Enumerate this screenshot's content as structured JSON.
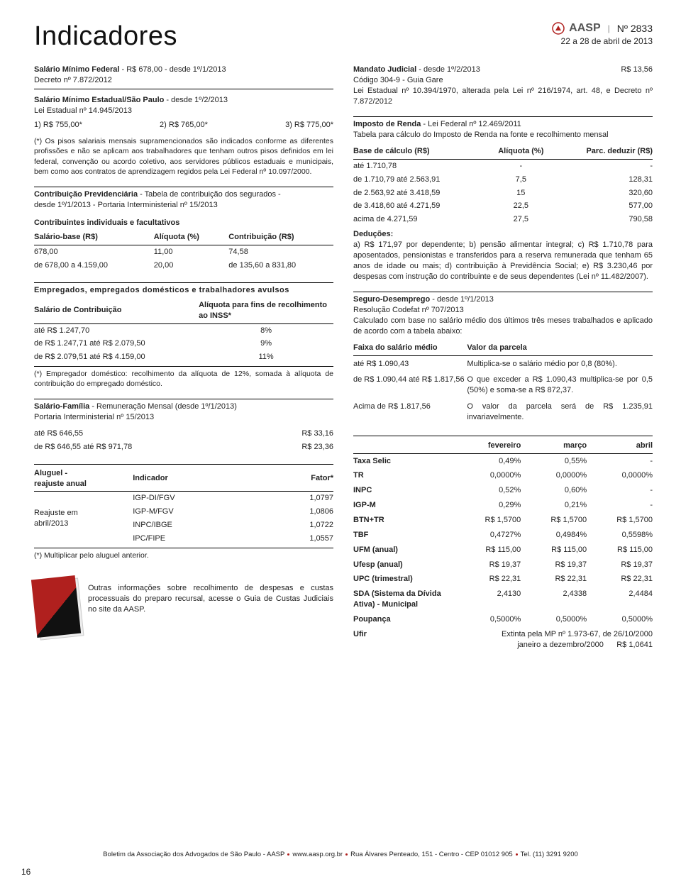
{
  "brand": {
    "name": "AASP",
    "issue": "Nº 2833",
    "dateRange": "22 a 28 de abril de 2013"
  },
  "title": "Indicadores",
  "pageNumber": "16",
  "left": {
    "salMinFed": {
      "label": "Salário Mínimo Federal",
      "value": " - R$ 678,00 - desde 1º/1/2013",
      "decree": "Decreto nº 7.872/2012"
    },
    "salMinEst": {
      "label": "Salário Mínimo Estadual/São Paulo",
      "value": " - desde 1º/2/2013",
      "law": "Lei Estadual nº 14.945/2013",
      "p1": "1) R$ 755,00*",
      "p2": "2) R$ 765,00*",
      "p3": "3) R$ 775,00*",
      "note": "(*) Os pisos salariais mensais supramencionados são indicados conforme as diferentes profissões e não se aplicam aos trabalhadores que tenham outros pisos definidos em lei federal, convenção ou acordo coletivo, aos servidores públicos estaduais e municipais, bem como aos contratos de aprendizagem regidos pela Lei Federal nº 10.097/2000."
    },
    "contribPrev": {
      "label": "Contribuição Previdenciária",
      "value": " - Tabela de contribuição dos segurados -",
      "sub": "desde 1º/1/2013 - Portaria Interministerial nº 15/2013"
    },
    "contribInd": {
      "title": "Contribuintes individuais e facultativos",
      "h1": "Salário-base (R$)",
      "h2": "Alíquota (%)",
      "h3": "Contribuição (R$)",
      "r1c1": "678,00",
      "r1c2": "11,00",
      "r1c3": "74,58",
      "r2c1": "de 678,00 a 4.159,00",
      "r2c2": "20,00",
      "r2c3": "de 135,60 a 831,80"
    },
    "empregados": {
      "title": "Empregados, empregados domésticos e trabalhadores avulsos",
      "h1": "Salário de Contribuição",
      "h2": "Alíquota para fins de recolhimento ao INSS*",
      "r1c1": "até R$ 1.247,70",
      "r1c2": "8%",
      "r2c1": "de R$ 1.247,71 até R$ 2.079,50",
      "r2c2": "9%",
      "r3c1": "de R$ 2.079,51 até R$ 4.159,00",
      "r3c2": "11%",
      "note": "(*) Empregador doméstico: recolhimento da alíquota de 12%, somada à alíquota de contribuição do empregado doméstico."
    },
    "salFamilia": {
      "label": "Salário-Família",
      "value": " - Remuneração Mensal (desde 1º/1/2013)",
      "sub": "Portaria Interministerial nº 15/2013",
      "r1c1": "até R$ 646,55",
      "r1c2": "R$ 33,16",
      "r2c1": "de R$ 646,55 até R$ 971,78",
      "r2c2": "R$ 23,36"
    },
    "aluguel": {
      "titleA": "Aluguel -",
      "titleB": "reajuste anual",
      "h2": "Indicador",
      "h3": "Fator*",
      "rowLabelA": "Reajuste em",
      "rowLabelB": "abril/2013",
      "r1c1": "IGP-DI/FGV",
      "r1c2": "1,0797",
      "r2c1": "IGP-M/FGV",
      "r2c2": "1,0806",
      "r3c1": "INPC/IBGE",
      "r3c2": "1,0722",
      "r4c1": "IPC/FIPE",
      "r4c2": "1,0557",
      "note": "(*) Multiplicar pelo aluguel anterior."
    },
    "outras": "Outras informações sobre recolhimento de despesas e custas processuais do preparo recursal, acesse o Guia de Custas Judiciais no site da AASP."
  },
  "right": {
    "mandato": {
      "label": "Mandato Judicial",
      "value": " - desde 1º/2/2013",
      "amount": "R$ 13,56",
      "l2": "Código 304-9 - Guia Gare",
      "l3": "Lei Estadual nº 10.394/1970, alterada pela Lei nº 216/1974, art. 48, e Decreto nº 7.872/2012"
    },
    "ir": {
      "label": "Imposto de Renda",
      "value": " - Lei Federal nº 12.469/2011",
      "sub": "Tabela para cálculo do Imposto de Renda na fonte e recolhimento mensal",
      "h1": "Base de cálculo (R$)",
      "h2": "Alíquota (%)",
      "h3": "Parc. deduzir (R$)",
      "r1c1": "até 1.710,78",
      "r1c2": "-",
      "r1c3": "-",
      "r2c1": "de 1.710,79 até 2.563,91",
      "r2c2": "7,5",
      "r2c3": "128,31",
      "r3c1": "de 2.563,92 até 3.418,59",
      "r3c2": "15",
      "r3c3": "320,60",
      "r4c1": "de 3.418,60 até 4.271,59",
      "r4c2": "22,5",
      "r4c3": "577,00",
      "r5c1": "acima de 4.271,59",
      "r5c2": "27,5",
      "r5c3": "790,58",
      "dedTitle": "Deduções:",
      "dedText": "a) R$ 171,97 por dependente; b) pensão alimentar integral; c) R$ 1.710,78 para aposentados, pensionistas e transferidos para a reserva remunerada que tenham 65 anos de idade ou mais; d) contribuição à Previdência Social; e) R$ 3.230,46 por despesas com instrução do contribuinte e de seus dependentes (Lei nº 11.482/2007)."
    },
    "seguro": {
      "label": "Seguro-Desemprego",
      "value": " - desde 1º/1/2013",
      "l2": "Resolução Codefat nº 707/2013",
      "l3": "Calculado com base no salário médio dos últimos três meses trabalhados e aplicado de acordo com a tabela abaixo:",
      "h1": "Faixa do salário médio",
      "h2": "Valor da parcela",
      "r1c1": "até R$ 1.090,43",
      "r1c2": "Multiplica-se o salário médio por 0,8 (80%).",
      "r2c1": "de R$ 1.090,44 até R$ 1.817,56",
      "r2c2": "O que exceder a R$ 1.090,43 multiplica-se por 0,5 (50%) e soma-se a R$ 872,37.",
      "r3c1": "Acima de R$ 1.817,56",
      "r3c2": "O valor da parcela será de R$ 1.235,91 invariavelmente."
    },
    "idx": {
      "h1": "fevereiro",
      "h2": "março",
      "h3": "abril",
      "rows": [
        {
          "n": "Taxa Selic",
          "a": "0,49%",
          "b": "0,55%",
          "c": "-"
        },
        {
          "n": "TR",
          "a": "0,0000%",
          "b": "0,0000%",
          "c": "0,0000%"
        },
        {
          "n": "INPC",
          "a": "0,52%",
          "b": "0,60%",
          "c": "-"
        },
        {
          "n": "IGP-M",
          "a": "0,29%",
          "b": "0,21%",
          "c": "-"
        },
        {
          "n": "BTN+TR",
          "a": "R$ 1,5700",
          "b": "R$ 1,5700",
          "c": "R$ 1,5700"
        },
        {
          "n": "TBF",
          "a": "0,4727%",
          "b": "0,4984%",
          "c": "0,5598%"
        },
        {
          "n": "UFM (anual)",
          "a": "R$ 115,00",
          "b": "R$ 115,00",
          "c": "R$ 115,00"
        },
        {
          "n": "Ufesp (anual)",
          "a": "R$ 19,37",
          "b": "R$ 19,37",
          "c": "R$ 19,37"
        },
        {
          "n": "UPC (trimestral)",
          "a": "R$ 22,31",
          "b": "R$ 22,31",
          "c": "R$ 22,31"
        },
        {
          "n": "SDA (Sistema da Dívida Ativa) - Municipal",
          "a": "2,4130",
          "b": "2,4338",
          "c": "2,4484"
        },
        {
          "n": "Poupança",
          "a": "0,5000%",
          "b": "0,5000%",
          "c": "0,5000%"
        }
      ],
      "ufirLabel": "Ufir",
      "ufirA": "Extinta pela MP nº 1.973-67, de 26/10/2000",
      "ufirB": "janeiro a dezembro/2000",
      "ufirC": "R$ 1,0641"
    }
  },
  "footer": {
    "a": "Boletim da Associação dos Advogados de São Paulo - AASP",
    "b": "www.aasp.org.br",
    "c": "Rua Álvares Penteado, 151 - Centro - CEP 01012 905",
    "d": "Tel. (11) 3291 9200"
  }
}
